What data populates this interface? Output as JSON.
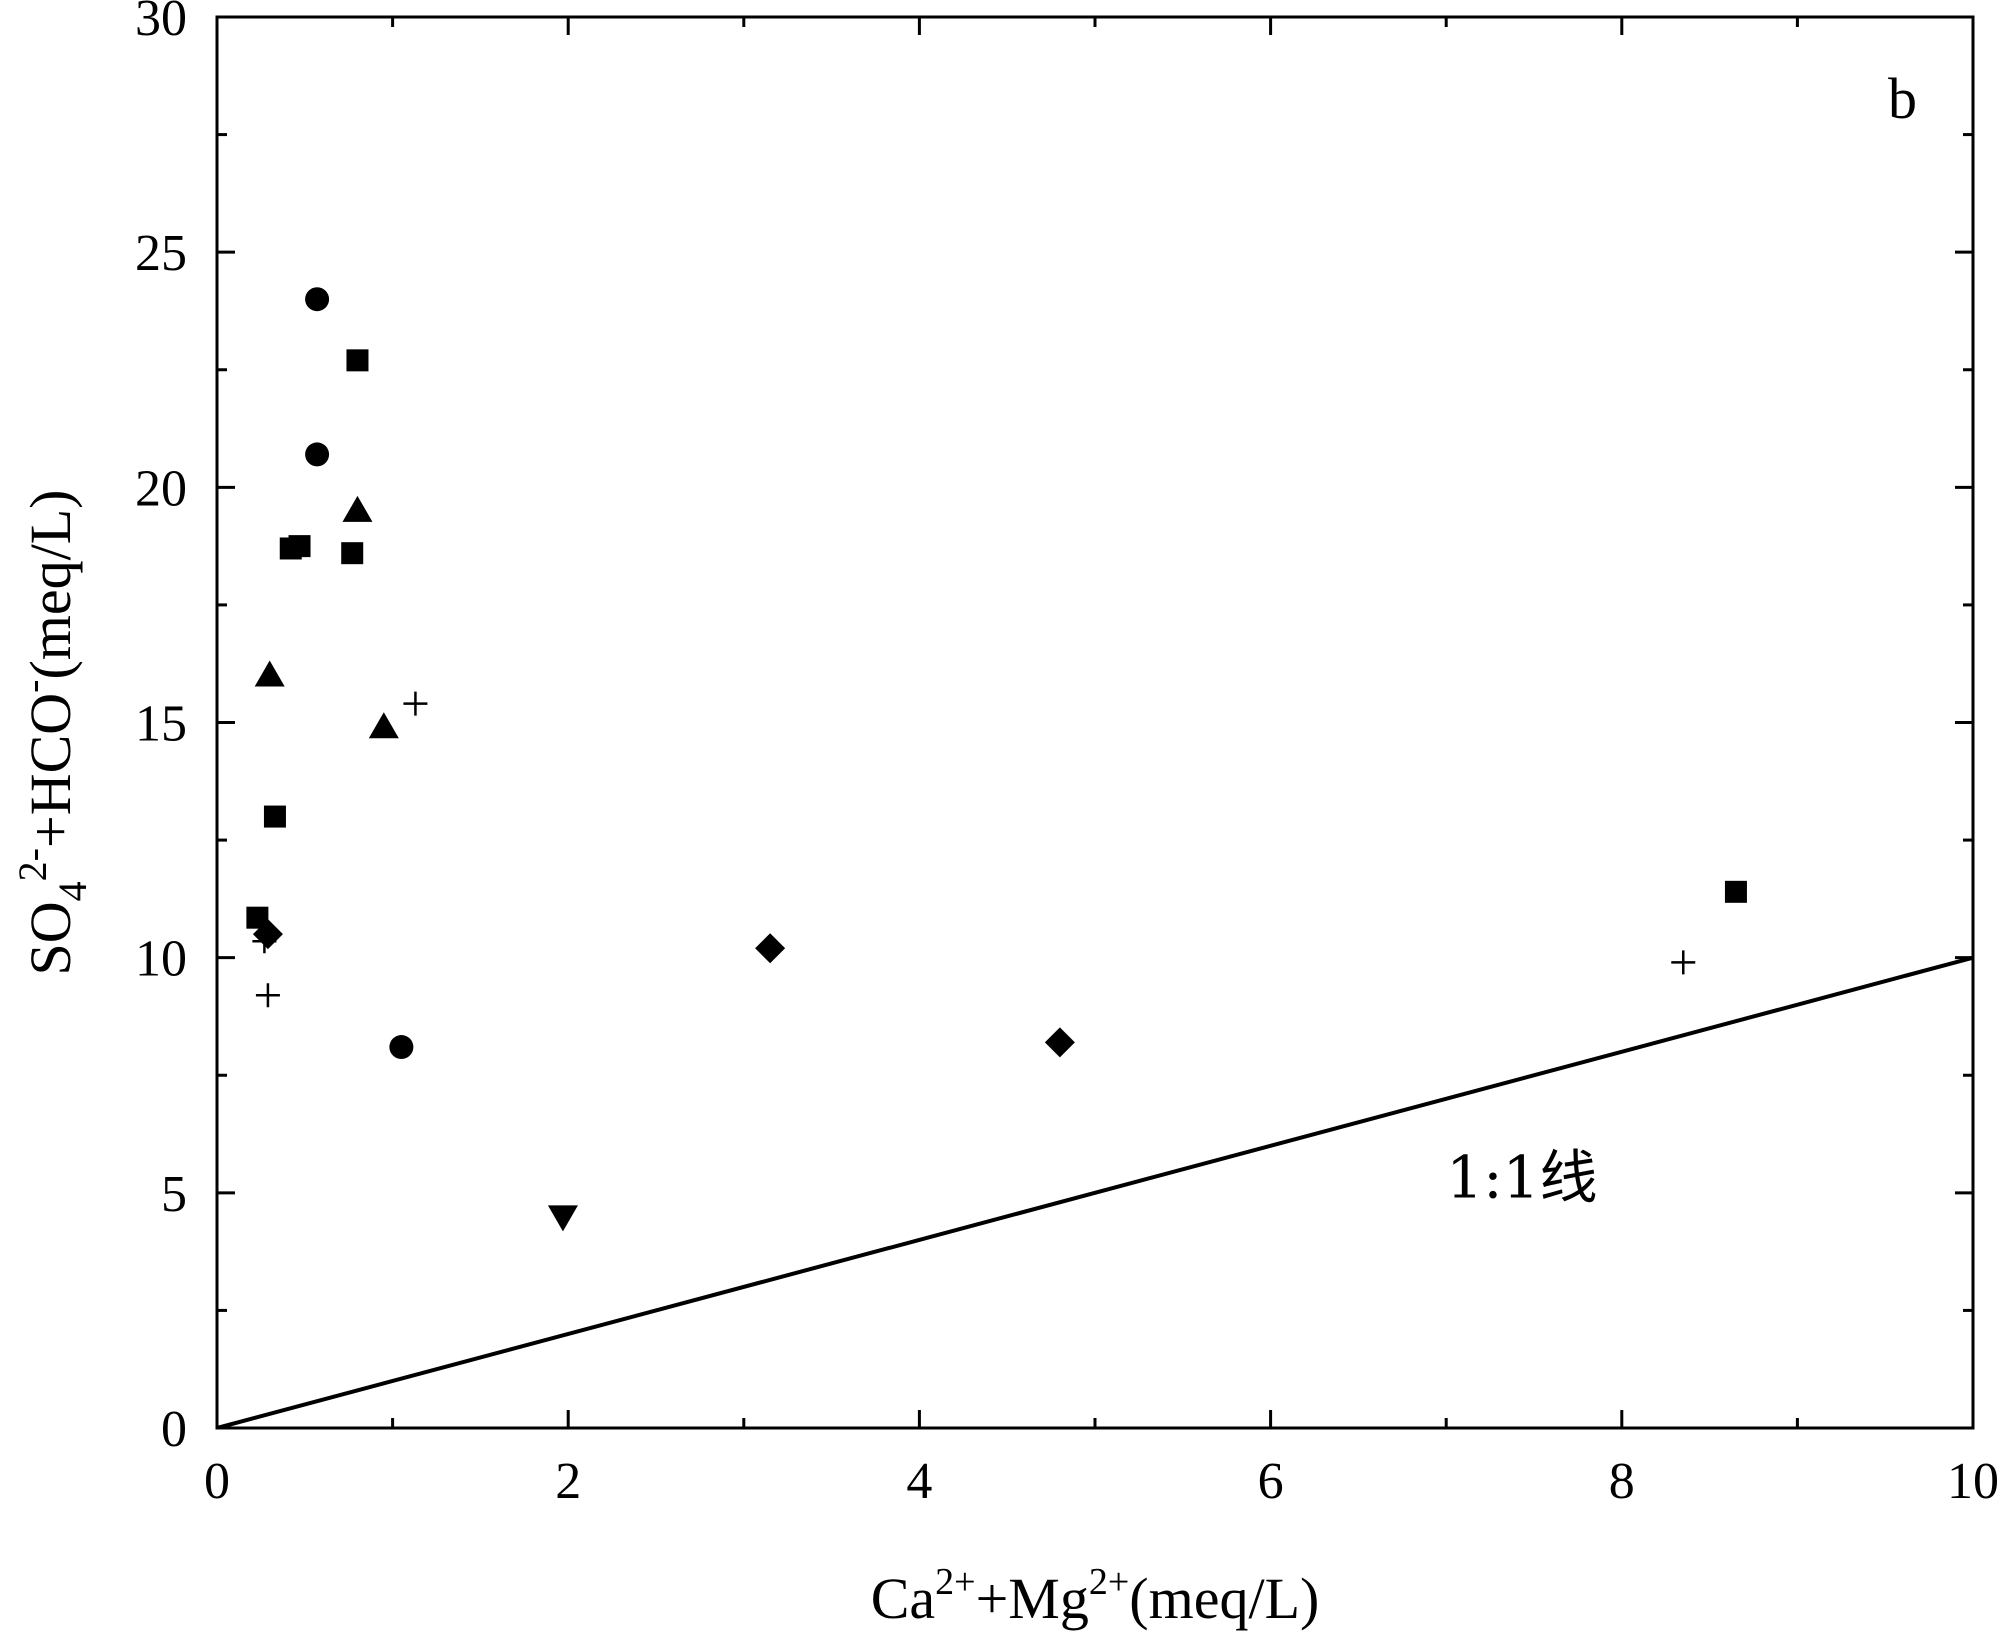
{
  "chart_data": {
    "type": "scatter",
    "panel_label": "b",
    "xlabel": {
      "parts": [
        "Ca",
        "2+",
        "+Mg",
        "2+",
        "(meq/L)"
      ]
    },
    "ylabel": {
      "parts": [
        "SO",
        "4",
        "2-",
        "+HCO",
        "-",
        "(meq/L)"
      ]
    },
    "xlim": [
      0,
      10
    ],
    "ylim": [
      0,
      30
    ],
    "x_major_ticks": [
      0,
      2,
      4,
      6,
      8,
      10
    ],
    "x_tick_labels": [
      "0",
      "2",
      "4",
      "6",
      "8",
      "10"
    ],
    "x_minor_ticks": [
      1,
      3,
      5,
      7,
      9
    ],
    "y_major_ticks": [
      0,
      5,
      10,
      15,
      20,
      25,
      30
    ],
    "y_tick_labels": [
      "0",
      "5",
      "10",
      "15",
      "20",
      "25",
      "30"
    ],
    "y_minor_ticks": [
      2.5,
      7.5,
      12.5,
      17.5,
      22.5,
      27.5
    ],
    "reference_line": {
      "label": "1:1线",
      "points": [
        [
          0,
          0
        ],
        [
          10,
          10
        ]
      ],
      "label_at": [
        7.0,
        4.9
      ]
    },
    "series": [
      {
        "name": "square",
        "marker": "square",
        "points": [
          [
            0.8,
            22.7
          ],
          [
            0.42,
            18.7
          ],
          [
            0.47,
            18.75
          ],
          [
            0.77,
            18.6
          ],
          [
            0.33,
            13.0
          ],
          [
            0.23,
            10.85
          ],
          [
            8.65,
            11.4
          ]
        ]
      },
      {
        "name": "circle",
        "marker": "circle",
        "points": [
          [
            0.57,
            24.0
          ],
          [
            0.57,
            20.7
          ],
          [
            1.05,
            8.1
          ]
        ]
      },
      {
        "name": "triangle-up",
        "marker": "triangle-up",
        "points": [
          [
            0.8,
            19.5
          ],
          [
            0.3,
            16.0
          ],
          [
            0.95,
            14.9
          ]
        ]
      },
      {
        "name": "diamond",
        "marker": "diamond",
        "points": [
          [
            0.29,
            10.5
          ],
          [
            3.15,
            10.2
          ],
          [
            4.8,
            8.2
          ]
        ]
      },
      {
        "name": "triangle-down",
        "marker": "triangle-down",
        "points": [
          [
            1.97,
            4.5
          ]
        ]
      },
      {
        "name": "plus",
        "marker": "plus",
        "points": [
          [
            1.13,
            15.4
          ],
          [
            0.27,
            10.35
          ],
          [
            0.29,
            9.2
          ],
          [
            8.35,
            9.9
          ]
        ]
      }
    ]
  }
}
